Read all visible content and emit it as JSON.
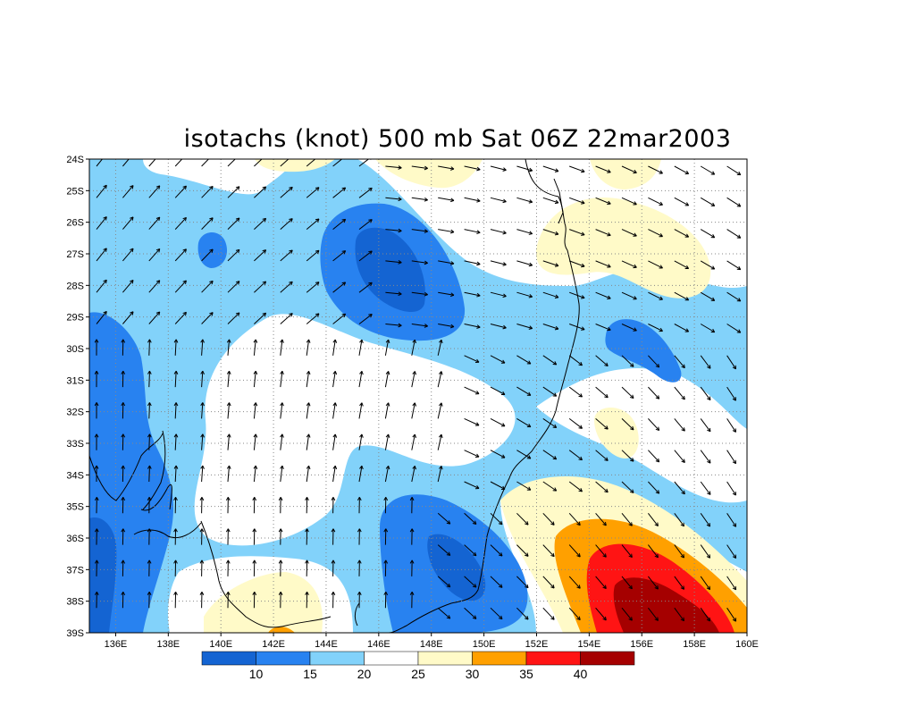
{
  "title": "isotachs (knot) 500 mb Sat 06Z 22mar2003",
  "map": {
    "lon_range": [
      135,
      160
    ],
    "lat_range": [
      -39,
      -24
    ],
    "lon_labels": [
      "136E",
      "138E",
      "140E",
      "142E",
      "144E",
      "146E",
      "148E",
      "150E",
      "152E",
      "154E",
      "156E",
      "158E",
      "160E"
    ],
    "lat_labels": [
      "24S",
      "25S",
      "26S",
      "27S",
      "28S",
      "29S",
      "30S",
      "31S",
      "32S",
      "33S",
      "34S",
      "35S",
      "36S",
      "37S",
      "38S",
      "39S"
    ]
  },
  "colorbar": {
    "colors": [
      "#1464d2",
      "#2882f0",
      "#82d2fa",
      "#ffffff",
      "#fffac8",
      "#ffa000",
      "#ff1414",
      "#a50000"
    ],
    "labels": [
      "10",
      "15",
      "20",
      "25",
      "30",
      "35",
      "40"
    ]
  }
}
